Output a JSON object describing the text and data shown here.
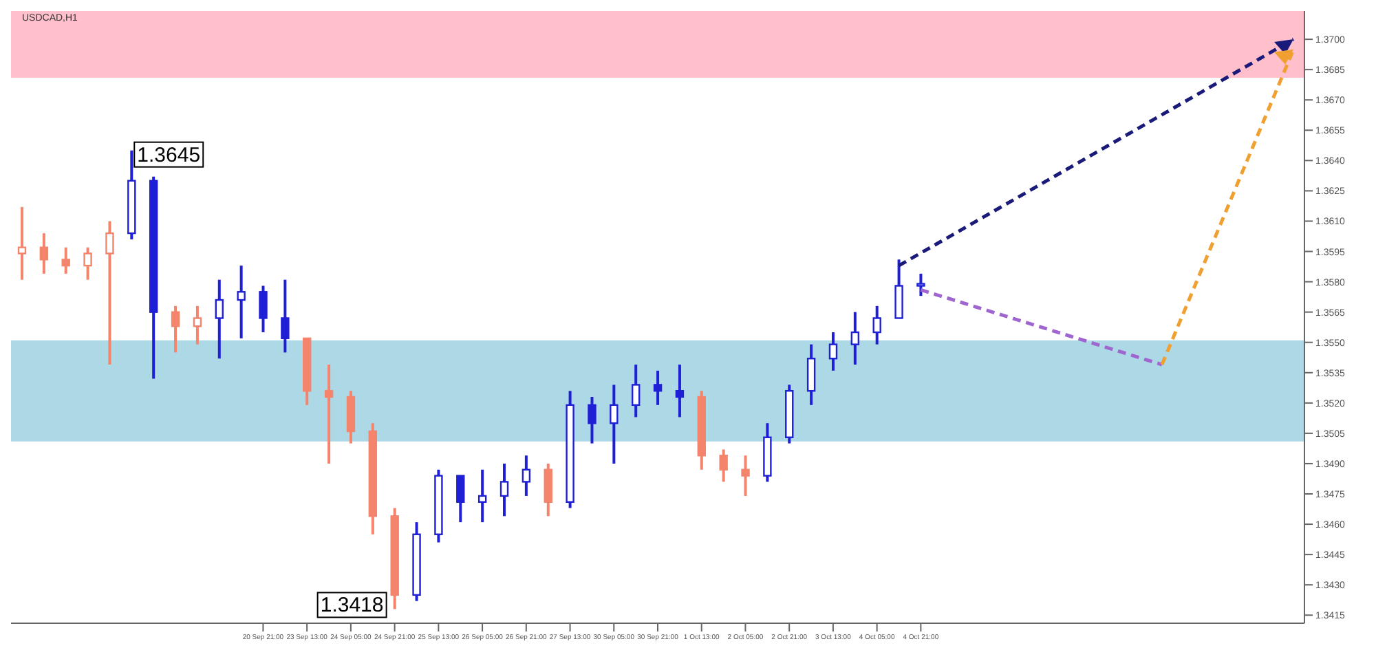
{
  "chart_data": {
    "type": "candlestick",
    "title": "USDCAD,H1",
    "categories": [
      null,
      null,
      null,
      null,
      null,
      null,
      null,
      null,
      null,
      null,
      null,
      "20 Sep 21:00",
      null,
      "23 Sep 13:00",
      null,
      "24 Sep 05:00",
      null,
      "24 Sep 21:00",
      null,
      "25 Sep 13:00",
      null,
      "26 Sep 05:00",
      null,
      "26 Sep 21:00",
      null,
      "27 Sep 13:00",
      null,
      "30 Sep 05:00",
      null,
      "30 Sep 21:00",
      null,
      "1 Oct 13:00",
      null,
      "2 Oct 05:00",
      null,
      "2 Oct 21:00",
      null,
      "3 Oct 13:00",
      null,
      "4 Oct 05:00",
      null,
      "4 Oct 21:00",
      null,
      null,
      null,
      null,
      null,
      null,
      null,
      null,
      null,
      null,
      null,
      null,
      null,
      null,
      null,
      null,
      null
    ],
    "ohlc": [
      [
        1.3594,
        1.3617,
        1.3581,
        1.3597
      ],
      [
        1.3597,
        1.3604,
        1.3584,
        1.3591
      ],
      [
        1.3591,
        1.3597,
        1.3584,
        1.3588
      ],
      [
        1.3588,
        1.3597,
        1.3581,
        1.3594
      ],
      [
        1.3594,
        1.361,
        1.3539,
        1.3604
      ],
      [
        1.3604,
        1.3645,
        1.3601,
        1.363
      ],
      [
        1.363,
        1.3632,
        1.3532,
        1.3565
      ],
      [
        1.3565,
        1.3568,
        1.3545,
        1.3558
      ],
      [
        1.3558,
        1.3568,
        1.3549,
        1.3562
      ],
      [
        1.3562,
        1.3581,
        1.3542,
        1.3571
      ],
      [
        1.3571,
        1.3588,
        1.3552,
        1.3575
      ],
      [
        1.3575,
        1.3578,
        1.3555,
        1.3562
      ],
      [
        1.3562,
        1.3581,
        1.3545,
        1.3552
      ],
      [
        1.3552,
        1.3552,
        1.3519,
        1.3526
      ],
      [
        1.3526,
        1.3539,
        1.349,
        1.3523
      ],
      [
        1.3523,
        1.3526,
        1.35,
        1.3506
      ],
      [
        1.3506,
        1.351,
        1.3455,
        1.3464
      ],
      [
        1.3464,
        1.3468,
        1.3418,
        1.3425
      ],
      [
        1.3425,
        1.3461,
        1.3422,
        1.3455
      ],
      [
        1.3455,
        1.3487,
        1.3451,
        1.3484
      ],
      [
        1.3484,
        1.3484,
        1.3461,
        1.3471
      ],
      [
        1.3471,
        1.3487,
        1.3461,
        1.3474
      ],
      [
        1.3474,
        1.349,
        1.3464,
        1.3481
      ],
      [
        1.3481,
        1.3494,
        1.3474,
        1.3487
      ],
      [
        1.3487,
        1.349,
        1.3464,
        1.3471
      ],
      [
        1.3471,
        1.3526,
        1.3468,
        1.3519
      ],
      [
        1.3519,
        1.3523,
        1.35,
        1.351
      ],
      [
        1.351,
        1.3529,
        1.349,
        1.3519
      ],
      [
        1.3519,
        1.3539,
        1.3513,
        1.3529
      ],
      [
        1.3529,
        1.3536,
        1.3519,
        1.3526
      ],
      [
        1.3526,
        1.3539,
        1.3513,
        1.3523
      ],
      [
        1.3523,
        1.3526,
        1.3487,
        1.3494
      ],
      [
        1.3494,
        1.3497,
        1.3481,
        1.3487
      ],
      [
        1.3487,
        1.3494,
        1.3474,
        1.3484
      ],
      [
        1.3484,
        1.351,
        1.3481,
        1.3503
      ],
      [
        1.3503,
        1.3529,
        1.35,
        1.3526
      ],
      [
        1.3526,
        1.3549,
        1.3519,
        1.3542
      ],
      [
        1.3542,
        1.3555,
        1.3536,
        1.3549
      ],
      [
        1.3549,
        1.3565,
        1.3539,
        1.3555
      ],
      [
        1.3555,
        1.3568,
        1.3549,
        1.3562
      ],
      [
        1.3562,
        1.3591,
        1.3562,
        1.3578
      ],
      [
        1.3578,
        1.3584,
        1.3573,
        1.3579
      ],
      null,
      null,
      null,
      null,
      null,
      null,
      null,
      null,
      null,
      null,
      null,
      null,
      null,
      null,
      null,
      null,
      null
    ],
    "colors": [
      "#f4846c",
      "#f4846c",
      "#f4846c",
      "#f4846c",
      "#f4846c",
      "#1f1fd6",
      "#1f1fd6",
      "#f4846c",
      "#f4846c",
      "#1f1fd6",
      "#1f1fd6",
      "#1f1fd6",
      "#1f1fd6",
      "#f4846c",
      "#f4846c",
      "#f4846c",
      "#f4846c",
      "#f4846c",
      "#1f1fd6",
      "#1f1fd6",
      "#1f1fd6",
      "#1f1fd6",
      "#1f1fd6",
      "#1f1fd6",
      "#f4846c",
      "#1f1fd6",
      "#1f1fd6",
      "#1f1fd6",
      "#1f1fd6",
      "#1f1fd6",
      "#1f1fd6",
      "#f4846c",
      "#f4846c",
      "#f4846c",
      "#1f1fd6",
      "#1f1fd6",
      "#1f1fd6",
      "#1f1fd6",
      "#1f1fd6",
      "#1f1fd6",
      "#1f1fd6",
      "#1f1fd6",
      null,
      null,
      null,
      null,
      null,
      null,
      null,
      null,
      null,
      null,
      null,
      null,
      null,
      null,
      null,
      null,
      null
    ],
    "series": [
      {
        "type": "line",
        "color": "#1a1a7a",
        "line_style": "dashed",
        "values": [
          null,
          null,
          null,
          null,
          null,
          null,
          null,
          null,
          null,
          null,
          null,
          null,
          null,
          null,
          null,
          null,
          null,
          null,
          null,
          null,
          null,
          null,
          null,
          null,
          null,
          null,
          null,
          null,
          null,
          null,
          null,
          null,
          null,
          null,
          null,
          null,
          null,
          null,
          null,
          null,
          1.3588,
          null,
          null,
          null,
          null,
          null,
          null,
          null,
          null,
          null,
          null,
          null,
          null,
          null,
          null,
          null,
          null,
          null,
          1.37
        ]
      },
      {
        "type": "line",
        "color": "#a066d0",
        "line_style": "dashed",
        "values": [
          null,
          null,
          null,
          null,
          null,
          null,
          null,
          null,
          null,
          null,
          null,
          null,
          null,
          null,
          null,
          null,
          null,
          null,
          null,
          null,
          null,
          null,
          null,
          null,
          null,
          null,
          null,
          null,
          null,
          null,
          null,
          null,
          null,
          null,
          null,
          null,
          null,
          null,
          null,
          null,
          null,
          1.3576,
          null,
          null,
          null,
          null,
          null,
          null,
          null,
          null,
          null,
          null,
          1.3539,
          null,
          null,
          null,
          null,
          null,
          null
        ]
      },
      {
        "type": "line",
        "color": "#f0a030",
        "line_style": "dashed",
        "values": [
          null,
          null,
          null,
          null,
          null,
          null,
          null,
          null,
          null,
          null,
          null,
          null,
          null,
          null,
          null,
          null,
          null,
          null,
          null,
          null,
          null,
          null,
          null,
          null,
          null,
          null,
          null,
          null,
          null,
          null,
          null,
          null,
          null,
          null,
          null,
          null,
          null,
          null,
          null,
          null,
          null,
          null,
          null,
          null,
          null,
          null,
          null,
          null,
          null,
          null,
          null,
          null,
          1.3539,
          null,
          null,
          null,
          null,
          null,
          1.3695
        ]
      }
    ],
    "ylim": [
      1.3411,
      1.3714
    ],
    "yticks": [
      1.3415,
      {
        "value": 1.343,
        "label": "1.3430"
      },
      1.3445,
      {
        "value": 1.346,
        "label": "1.3460"
      },
      1.3475,
      {
        "value": 1.349,
        "label": "1.3490"
      },
      1.3505,
      {
        "value": 1.352,
        "label": "1.3520"
      },
      1.3535,
      {
        "value": 1.355,
        "label": "1.3550"
      },
      1.3565,
      {
        "value": 1.358,
        "label": "1.3580"
      },
      1.3595,
      {
        "value": 1.361,
        "label": "1.3610"
      },
      1.3625,
      {
        "value": 1.364,
        "label": "1.3640"
      },
      1.3655,
      {
        "value": 1.367,
        "label": "1.3670"
      },
      1.3685,
      {
        "value": 1.37,
        "label": "1.3700"
      }
    ],
    "bands": [
      {
        "axis": "y",
        "from": 1.3681,
        "to": 1.3714,
        "color": "#ffc0cb"
      },
      {
        "axis": "y",
        "from": 1.3501,
        "to": 1.3551,
        "color": "#add8e6"
      }
    ],
    "annotations": [
      "1.3645",
      "1.3418"
    ],
    "marker": "none"
  }
}
